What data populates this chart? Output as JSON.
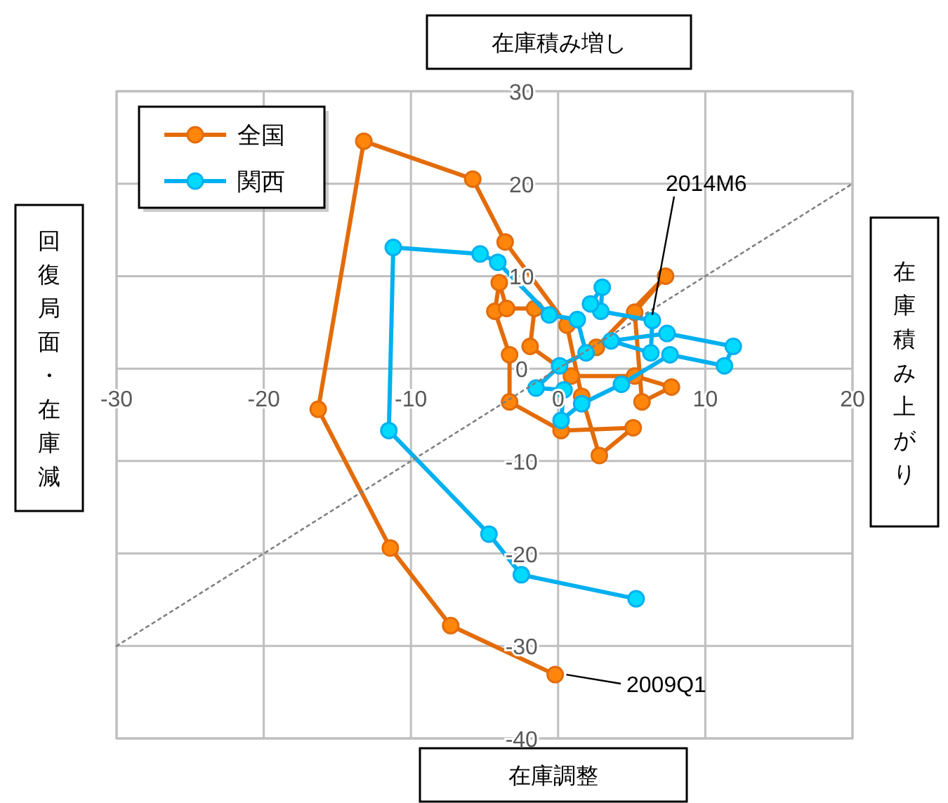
{
  "chart_data": {
    "type": "line",
    "xlim": [
      -30,
      20
    ],
    "ylim": [
      -40,
      30
    ],
    "xticks": [
      -30,
      -20,
      -10,
      0,
      10,
      20
    ],
    "yticks": [
      -40,
      -30,
      -20,
      -10,
      0,
      10,
      20,
      30
    ],
    "grid": true,
    "legend": "top left",
    "marker": "circle",
    "series": [
      {
        "name": "全国",
        "color": "#e36c09",
        "x": [
          -0.2,
          -7.3,
          -11.4,
          -16.3,
          -13.2,
          -5.8,
          -3.6,
          0.6,
          1.6,
          2.8,
          5.1,
          0.2,
          -3.3,
          -3.3,
          -4.3,
          -4.0,
          -3.5,
          -1.6,
          -1.9,
          0.9,
          5.2,
          7.7,
          5.7,
          5.2,
          7.3,
          2.6
        ],
        "values": [
          -33.1,
          -27.8,
          -19.4,
          -4.4,
          24.6,
          20.5,
          13.7,
          4.7,
          -3.0,
          -9.4,
          -6.4,
          -6.7,
          -3.6,
          1.5,
          6.2,
          9.3,
          6.5,
          6.5,
          2.4,
          -0.8,
          -0.8,
          -2.0,
          -3.6,
          6.1,
          10.0,
          2.3
        ]
      },
      {
        "name": "関西",
        "color": "#00b0f0",
        "x": [
          5.3,
          -2.5,
          -4.7,
          -11.5,
          -11.2,
          -5.3,
          -4.1,
          -0.6,
          1.3,
          1.9,
          0.1,
          -1.5,
          0.4,
          0.2,
          1.6,
          4.3,
          7.6,
          11.3,
          11.9,
          7.4,
          3.6,
          6.3,
          6.4,
          2.9,
          3.0,
          2.2
        ],
        "values": [
          -24.9,
          -22.3,
          -17.9,
          -6.7,
          13.1,
          12.4,
          11.5,
          5.8,
          5.3,
          1.7,
          0.3,
          -2.1,
          -2.3,
          -5.6,
          -3.8,
          -1.7,
          1.5,
          0.3,
          2.4,
          3.8,
          3.0,
          1.7,
          5.2,
          6.2,
          8.8,
          7.0
        ]
      },
      {
        "type": "line",
        "color": "#808080",
        "line_style": "dotted",
        "marker": "none",
        "x": [
          -30,
          20
        ],
        "values": [
          -30,
          20
        ]
      }
    ],
    "annotations": [
      "在庫積み増し",
      "在庫積み上がり",
      "在庫調整",
      "回復局面・在庫減",
      {
        "text": "2009Q1",
        "x": -0.2,
        "y": -33.1
      },
      {
        "text": "2014M6",
        "x": 6.4,
        "y": 5.2
      }
    ]
  }
}
